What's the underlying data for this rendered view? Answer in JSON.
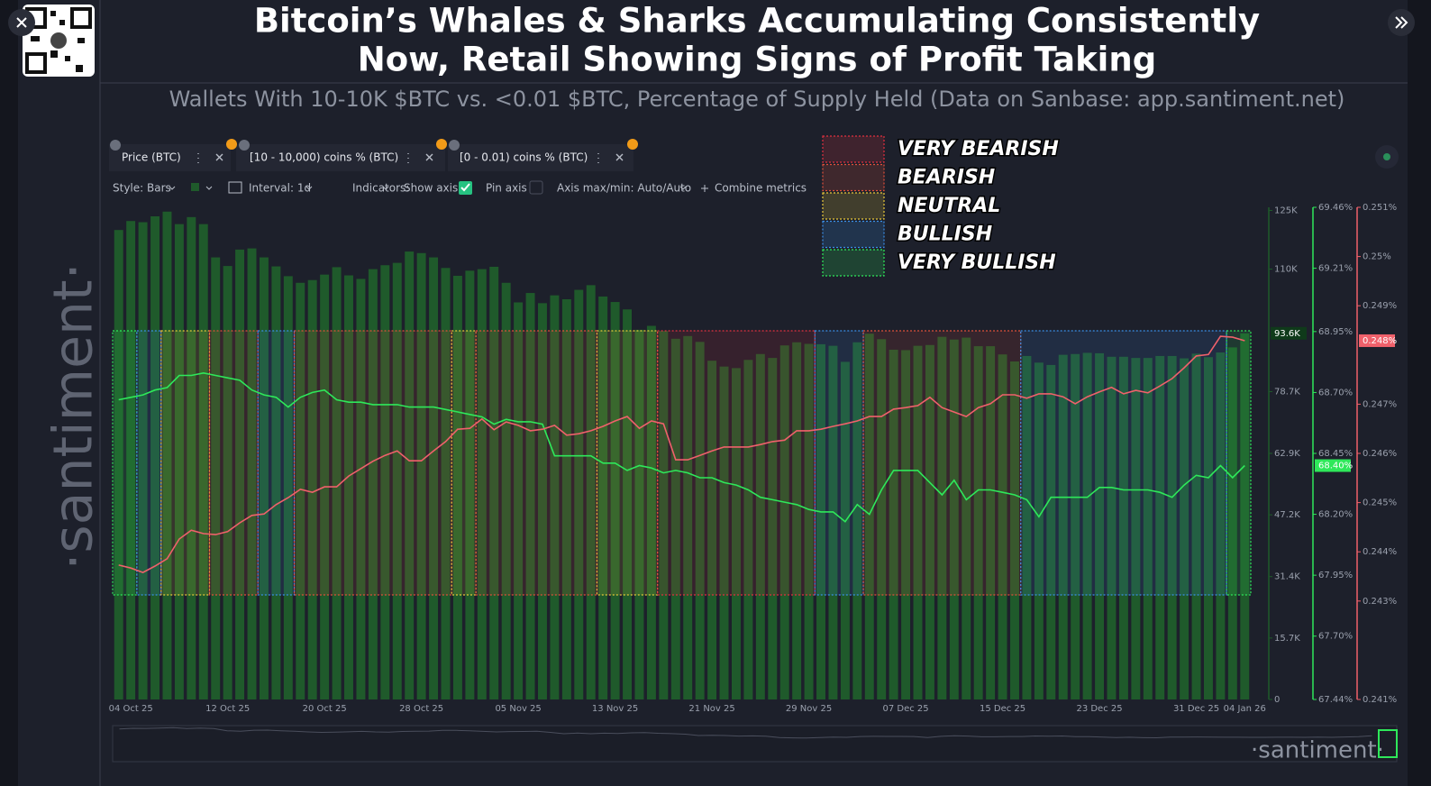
{
  "ui": {
    "title": [
      "Bitcoin’s Whales & Sharks Accumulating Consistently",
      "Now, Retail Showing Signs of Profit Taking"
    ],
    "subtitle": "Wallets With 10-10K $BTC vs. <0.01 $BTC, Percentage of Supply Held (Data on Sanbase: app.santiment.net)",
    "brand": "·santiment·",
    "toolbar": {
      "style": "Style: Bars",
      "interval": "Interval: 1d",
      "indicators": "Indicators:",
      "show_axis": "Show axis",
      "pin_axis": "Pin axis",
      "axis_minmax": "Axis max/min: Auto/Auto",
      "combine": "Combine metrics"
    }
  },
  "chart_data": {
    "type": "bar",
    "categories": [
      null,
      "04 Oct 25",
      null,
      null,
      null,
      null,
      null,
      null,
      null,
      "12 Oct 25",
      null,
      null,
      null,
      null,
      null,
      null,
      null,
      "20 Oct 25",
      null,
      null,
      null,
      null,
      null,
      null,
      null,
      "28 Oct 25",
      null,
      null,
      null,
      null,
      null,
      null,
      null,
      "05 Nov 25",
      null,
      null,
      null,
      null,
      null,
      null,
      null,
      "13 Nov 25",
      null,
      null,
      null,
      null,
      null,
      null,
      null,
      "21 Nov 25",
      null,
      null,
      null,
      null,
      null,
      null,
      null,
      "29 Nov 25",
      null,
      null,
      null,
      null,
      null,
      null,
      null,
      "07 Dec 25",
      null,
      null,
      null,
      null,
      null,
      null,
      null,
      "15 Dec 25",
      null,
      null,
      null,
      null,
      null,
      null,
      null,
      "23 Dec 25",
      null,
      null,
      null,
      null,
      null,
      null,
      null,
      "31 Dec 25",
      null,
      null,
      null,
      "04 Jan 26"
    ],
    "series": [
      {
        "name": "Price (BTC)",
        "color": "#1f5a2b",
        "axis": "y",
        "last_label": "93.6K",
        "values": [
          120000,
          122300,
          122000,
          123500,
          124700,
          121500,
          123300,
          121500,
          113000,
          110800,
          115000,
          115300,
          113000,
          110700,
          108200,
          106500,
          107200,
          108600,
          110500,
          108400,
          107500,
          110000,
          111000,
          111600,
          114500,
          114100,
          113000,
          110300,
          108300,
          109600,
          110000,
          110600,
          106500,
          101500,
          103900,
          101300,
          103300,
          102300,
          104700,
          105900,
          103000,
          101600,
          99700,
          94500,
          95500,
          94200,
          92200,
          92900,
          91400,
          86600,
          85100,
          84700,
          86800,
          88300,
          87300,
          90500,
          91300,
          90900,
          90800,
          90400,
          86300,
          91300,
          93500,
          92100,
          89400,
          89300,
          90400,
          90600,
          92700,
          92000,
          92500,
          90300,
          90300,
          88200,
          86400,
          87800,
          86100,
          85500,
          88100,
          88300,
          88600,
          88500,
          87600,
          87600,
          87300,
          87300,
          87800,
          87800,
          87200,
          88400,
          87500,
          88700,
          90000,
          93600
        ]
      },
      {
        "name": "[10 - 10,000) coins % (BTC)",
        "color": "#2ee85a",
        "axis": "y2",
        "last_label": "68.40%",
        "values": [
          68.67,
          68.68,
          68.69,
          68.71,
          68.72,
          68.77,
          68.77,
          68.78,
          68.77,
          68.76,
          68.75,
          68.71,
          68.69,
          68.68,
          68.64,
          68.68,
          68.7,
          68.71,
          68.67,
          68.66,
          68.66,
          68.65,
          68.65,
          68.65,
          68.64,
          68.64,
          68.64,
          68.63,
          68.62,
          68.61,
          68.6,
          68.57,
          68.59,
          68.58,
          68.58,
          68.57,
          68.44,
          68.44,
          68.44,
          68.44,
          68.41,
          68.41,
          68.38,
          68.4,
          68.39,
          68.37,
          68.38,
          68.37,
          68.35,
          68.35,
          68.33,
          68.32,
          68.3,
          68.27,
          68.26,
          68.25,
          68.24,
          68.22,
          68.21,
          68.21,
          68.17,
          68.24,
          68.2,
          68.3,
          68.38,
          68.38,
          68.38,
          68.33,
          68.28,
          68.34,
          68.26,
          68.3,
          68.3,
          68.29,
          68.28,
          68.26,
          68.19,
          68.27,
          68.27,
          68.27,
          68.27,
          68.31,
          68.31,
          68.3,
          68.3,
          68.3,
          68.29,
          68.27,
          68.32,
          68.36,
          68.35,
          68.4,
          68.35,
          68.4
        ]
      },
      {
        "name": "[0 - 0.01) coins % (BTC)",
        "color": "#f0616b",
        "axis": "y3",
        "last_label": "0.248%",
        "values": [
          0.24373,
          0.24367,
          0.24358,
          0.24371,
          0.24386,
          0.24426,
          0.24444,
          0.24437,
          0.24435,
          0.24441,
          0.24459,
          0.24474,
          0.24477,
          0.24496,
          0.2451,
          0.24527,
          0.24521,
          0.24532,
          0.24532,
          0.24554,
          0.24569,
          0.24584,
          0.24596,
          0.24605,
          0.24585,
          0.24585,
          0.24605,
          0.24624,
          0.24649,
          0.24651,
          0.2467,
          0.24648,
          0.24664,
          0.24657,
          0.24646,
          0.24649,
          0.24657,
          0.24637,
          0.2464,
          0.24646,
          0.24655,
          0.24666,
          0.24675,
          0.24651,
          0.24666,
          0.2466,
          0.24587,
          0.24587,
          0.24596,
          0.24605,
          0.24613,
          0.24613,
          0.24613,
          0.24618,
          0.24624,
          0.24627,
          0.24646,
          0.24646,
          0.24649,
          0.24655,
          0.2466,
          0.24666,
          0.24675,
          0.24675,
          0.2469,
          0.24693,
          0.24697,
          0.24714,
          0.24693,
          0.24684,
          0.24675,
          0.24693,
          0.24701,
          0.24719,
          0.24719,
          0.24712,
          0.24721,
          0.24721,
          0.24715,
          0.24701,
          0.24715,
          0.24725,
          0.24734,
          0.24721,
          0.24728,
          0.24723,
          0.24737,
          0.24752,
          0.24774,
          0.24798,
          0.24801,
          0.24838,
          0.24836,
          0.24829
        ]
      }
    ],
    "ylim": [
      0,
      125800
    ],
    "yticks": [
      0,
      {
        "value": 15700,
        "label": "15.7K"
      },
      {
        "value": 31400,
        "label": "31.4K"
      },
      {
        "value": 47200,
        "label": "47.2K"
      },
      {
        "value": 62900,
        "label": "62.9K"
      },
      {
        "value": 78700,
        "label": "78.7K"
      },
      {
        "value": 110000,
        "label": "110K"
      },
      {
        "value": 125000,
        "label": "125K"
      }
    ],
    "y2lim": [
      67.44,
      69.46
    ],
    "y2ticks": [
      {
        "value": 67.44,
        "label": "67.44%"
      },
      {
        "value": 67.7,
        "label": "67.70%"
      },
      {
        "value": 67.95,
        "label": "67.95%"
      },
      {
        "value": 68.2,
        "label": "68.20%"
      },
      {
        "value": 68.45,
        "label": "68.45%"
      },
      {
        "value": 68.7,
        "label": "68.70%"
      },
      {
        "value": 68.95,
        "label": "68.95%"
      },
      {
        "value": 69.21,
        "label": "69.21%"
      },
      {
        "value": 69.46,
        "label": "69.46%"
      }
    ],
    "y3lim": [
      0.241,
      0.251
    ],
    "y3ticks": [
      {
        "value": 0.241,
        "label": "0.241%"
      },
      {
        "value": 0.243,
        "label": "0.243%"
      },
      {
        "value": 0.244,
        "label": "0.244%"
      },
      {
        "value": 0.245,
        "label": "0.245%"
      },
      {
        "value": 0.246,
        "label": "0.246%"
      },
      {
        "value": 0.247,
        "label": "0.247%"
      },
      {
        "value": 0.249,
        "label": "0.249%"
      },
      {
        "value": 0.25,
        "label": "0.25%"
      },
      {
        "value": 0.251,
        "label": "0.251%"
      }
    ],
    "sentiment_legend": [
      {
        "label": "VERY BEARISH",
        "color": "#e0303f"
      },
      {
        "label": "BEARISH",
        "color": "#e0503a"
      },
      {
        "label": "NEUTRAL",
        "color": "#e8c83a"
      },
      {
        "label": "BULLISH",
        "color": "#3a8ee8"
      },
      {
        "label": "VERY BULLISH",
        "color": "#2ee85a"
      }
    ],
    "daily_sentiment": [
      "VERY BULLISH",
      "VERY BULLISH",
      "BULLISH",
      "BULLISH",
      "NEUTRAL",
      "NEUTRAL",
      "NEUTRAL",
      "NEUTRAL",
      "BEARISH",
      "BEARISH",
      "BEARISH",
      "BEARISH",
      "BULLISH",
      "BULLISH",
      "BULLISH",
      "BEARISH",
      "BEARISH",
      "BEARISH",
      "BEARISH",
      "BEARISH",
      "BEARISH",
      "BEARISH",
      "BEARISH",
      "BEARISH",
      "BEARISH",
      "BEARISH",
      "BEARISH",
      "BEARISH",
      "NEUTRAL",
      "NEUTRAL",
      "BEARISH",
      "BEARISH",
      "BEARISH",
      "BEARISH",
      "BEARISH",
      "BEARISH",
      "BEARISH",
      "BEARISH",
      "BEARISH",
      "BEARISH",
      "NEUTRAL",
      "NEUTRAL",
      "NEUTRAL",
      "NEUTRAL",
      "NEUTRAL",
      "VERY BEARISH",
      "VERY BEARISH",
      "VERY BEARISH",
      "VERY BEARISH",
      "VERY BEARISH",
      "VERY BEARISH",
      "VERY BEARISH",
      "VERY BEARISH",
      "VERY BEARISH",
      "VERY BEARISH",
      "VERY BEARISH",
      "VERY BEARISH",
      "VERY BEARISH",
      "BULLISH",
      "BULLISH",
      "BULLISH",
      "BULLISH",
      "BEARISH",
      "BEARISH",
      "BEARISH",
      "BEARISH",
      "BEARISH",
      "BEARISH",
      "BEARISH",
      "BEARISH",
      "BEARISH",
      "BEARISH",
      "BEARISH",
      "BEARISH",
      "BEARISH",
      "BULLISH",
      "BULLISH",
      "BULLISH",
      "BULLISH",
      "BULLISH",
      "BULLISH",
      "BULLISH",
      "BULLISH",
      "BULLISH",
      "BULLISH",
      "BULLISH",
      "BULLISH",
      "BULLISH",
      "BULLISH",
      "BULLISH",
      "BULLISH",
      "BULLISH",
      "VERY BULLISH",
      "VERY BULLISH"
    ]
  }
}
